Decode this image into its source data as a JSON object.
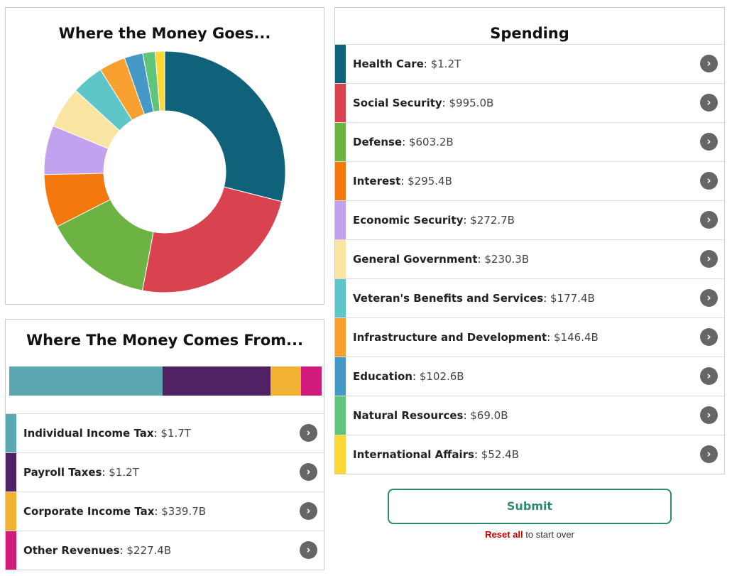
{
  "money_goes": {
    "title": "Where the Money Goes..."
  },
  "chart_data": {
    "type": "pie",
    "style": "donut",
    "categories": [
      "Health Care",
      "Social Security",
      "Defense",
      "Interest",
      "Economic Security",
      "General Government",
      "Veteran's Benefits and Services",
      "Infrastructure and Development",
      "Education",
      "Natural Resources",
      "International Affairs"
    ],
    "values": [
      1200.0,
      995.0,
      603.2,
      295.4,
      272.7,
      230.3,
      177.4,
      146.4,
      102.6,
      69.0,
      52.4
    ],
    "unit": "billions USD",
    "colors": [
      "#10627b",
      "#d8434f",
      "#6db343",
      "#f3780d",
      "#c2a1ee",
      "#f9e5a1",
      "#5ec5c9",
      "#f7a02f",
      "#4699c4",
      "#60c47a",
      "#fdd835"
    ]
  },
  "money_comes": {
    "title": "Where The Money Comes From...",
    "bar": [
      {
        "value": 1700.0,
        "color": "#5ba8b3"
      },
      {
        "value": 1200.0,
        "color": "#502163"
      },
      {
        "value": 339.7,
        "color": "#f2b234"
      },
      {
        "value": 227.4,
        "color": "#d01b7c"
      }
    ],
    "items": [
      {
        "name": "Individual Income Tax",
        "amount": "$1.7T",
        "color": "#5ba8b3"
      },
      {
        "name": "Payroll Taxes",
        "amount": "$1.2T",
        "color": "#502163"
      },
      {
        "name": "Corporate Income Tax",
        "amount": "$339.7B",
        "color": "#f2b234"
      },
      {
        "name": "Other Revenues",
        "amount": "$227.4B",
        "color": "#d01b7c"
      }
    ]
  },
  "spending": {
    "title": "Spending",
    "items": [
      {
        "name": "Health Care",
        "amount": "$1.2T",
        "color": "#10627b"
      },
      {
        "name": "Social Security",
        "amount": "$995.0B",
        "color": "#d8434f"
      },
      {
        "name": "Defense",
        "amount": "$603.2B",
        "color": "#6db343"
      },
      {
        "name": "Interest",
        "amount": "$295.4B",
        "color": "#f3780d"
      },
      {
        "name": "Economic Security",
        "amount": "$272.7B",
        "color": "#c2a1ee"
      },
      {
        "name": "General Government",
        "amount": "$230.3B",
        "color": "#f9e5a1"
      },
      {
        "name": "Veteran's Benefits and Services",
        "amount": "$177.4B",
        "color": "#5ec5c9"
      },
      {
        "name": "Infrastructure and Development",
        "amount": "$146.4B",
        "color": "#f7a02f"
      },
      {
        "name": "Education",
        "amount": "$102.6B",
        "color": "#4699c4"
      },
      {
        "name": "Natural Resources",
        "amount": "$69.0B",
        "color": "#60c47a"
      },
      {
        "name": "International Affairs",
        "amount": "$52.4B",
        "color": "#fdd835"
      }
    ]
  },
  "actions": {
    "submit_label": "Submit",
    "reset_label": "Reset all",
    "reset_suffix": "to start over"
  },
  "icons": {
    "row_arrow": "chevron-right-icon",
    "row_arrow_glyph": "›"
  }
}
